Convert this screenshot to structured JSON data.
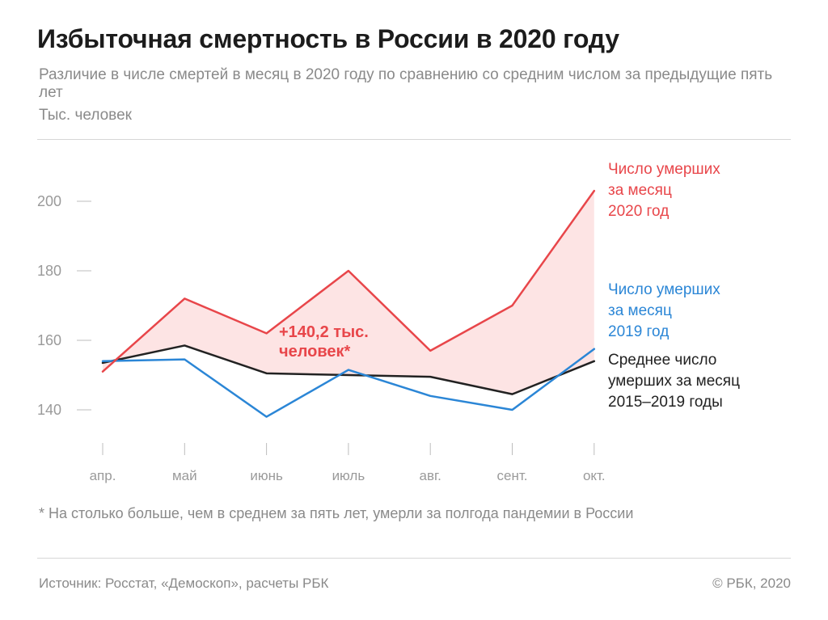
{
  "title": "Избыточная смертность в России в 2020 году",
  "subtitle": "Различие в числе смертей в месяц в 2020 году по сравнению со средним числом за предыдущие пять лет",
  "unit": "Тыс. человек",
  "colors": {
    "red": "#e8464a",
    "blue": "#2b86d6",
    "black": "#222222",
    "fill": "#fde4e4",
    "tick": "#9a9a9a"
  },
  "chart_data": {
    "type": "line",
    "title": "Избыточная смертность в России в 2020 году",
    "ylabel": "Тыс. человек",
    "categories": [
      "апр.",
      "май",
      "июнь",
      "июль",
      "авг.",
      "сент.",
      "окт."
    ],
    "yticks": [
      140,
      160,
      180,
      200
    ],
    "ylim": [
      130,
      210
    ],
    "grid": false,
    "series": [
      {
        "name": "Число умерших за месяц 2020 год",
        "color": "#e8464a",
        "values": [
          151,
          172,
          162,
          180,
          157,
          170,
          203
        ]
      },
      {
        "name": "Число умерших за месяц 2019 год",
        "color": "#2b86d6",
        "values": [
          154,
          154.5,
          138,
          151.5,
          144,
          140,
          157.5
        ]
      },
      {
        "name": "Среднее число умерших за месяц 2015–2019 годы",
        "color": "#222222",
        "values": [
          153.5,
          158.5,
          150.5,
          150,
          149.5,
          144.5,
          154
        ]
      }
    ],
    "annotation": {
      "line1": "+140,2 тыс.",
      "line2": "человек*"
    }
  },
  "legend": {
    "red": [
      "Число умерших",
      "за месяц",
      "2020 год"
    ],
    "blue": [
      "Число умерших",
      "за месяц",
      "2019 год"
    ],
    "black": [
      "Среднее число",
      "умерших за месяц",
      "2015–2019 годы"
    ]
  },
  "footnote": "* На столько больше, чем в среднем за пять лет, умерли за полгода пандемии в России",
  "source": "Источник: Росстат, «Демоскоп», расчеты РБК",
  "copyright": "© РБК, 2020"
}
